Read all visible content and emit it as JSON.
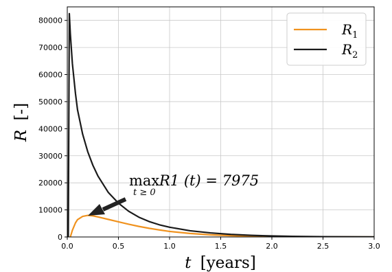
{
  "chart_data": {
    "type": "line",
    "xlabel": "t [years]",
    "ylabel": "R [-]",
    "xlim": [
      0.0,
      3.0
    ],
    "ylim": [
      0,
      85000
    ],
    "x_ticks": [
      "0.0",
      "0.5",
      "1.0",
      "1.5",
      "2.0",
      "2.5",
      "3.0"
    ],
    "y_ticks": [
      "0",
      "10000",
      "20000",
      "30000",
      "40000",
      "50000",
      "60000",
      "70000",
      "80000"
    ],
    "grid": true,
    "legend_position": "top-right",
    "series": [
      {
        "name": "R1",
        "color": "#f0921e",
        "x": [
          0.03,
          0.05,
          0.08,
          0.1,
          0.15,
          0.2,
          0.25,
          0.3,
          0.4,
          0.5,
          0.6,
          0.7,
          0.8,
          0.9,
          1.0,
          1.2,
          1.4,
          1.6,
          1.8,
          2.0,
          2.2,
          2.5,
          3.0
        ],
        "values": [
          0,
          2500,
          5200,
          6400,
          7600,
          7975,
          7800,
          7400,
          6500,
          5600,
          4700,
          3900,
          3200,
          2600,
          2050,
          1300,
          800,
          480,
          290,
          170,
          100,
          45,
          15
        ]
      },
      {
        "name": "R2",
        "color": "#1a1a1a",
        "x": [
          0.01,
          0.02,
          0.03,
          0.05,
          0.08,
          0.1,
          0.15,
          0.2,
          0.25,
          0.3,
          0.4,
          0.5,
          0.6,
          0.7,
          0.8,
          0.9,
          1.0,
          1.2,
          1.4,
          1.6,
          1.8,
          2.0,
          2.2,
          2.5,
          3.0
        ],
        "values": [
          0,
          82500,
          75000,
          64000,
          53000,
          47000,
          38000,
          31500,
          26500,
          22500,
          16500,
          12500,
          9500,
          7300,
          5700,
          4500,
          3600,
          2300,
          1500,
          950,
          600,
          380,
          230,
          110,
          30
        ]
      }
    ],
    "annotation": {
      "text_max": "max",
      "text_sub": "t ≥ 0",
      "text_expr": "R1 (t) = 7975",
      "point_x": 0.2,
      "point_y": 7975
    }
  },
  "legend": {
    "r1": {
      "symbol": "R",
      "sub": "1"
    },
    "r2": {
      "symbol": "R",
      "sub": "2"
    }
  },
  "axis_text": {
    "x_symbol": "t",
    "x_unit": "[years]",
    "y_symbol": "R",
    "y_unit": "[-]"
  }
}
